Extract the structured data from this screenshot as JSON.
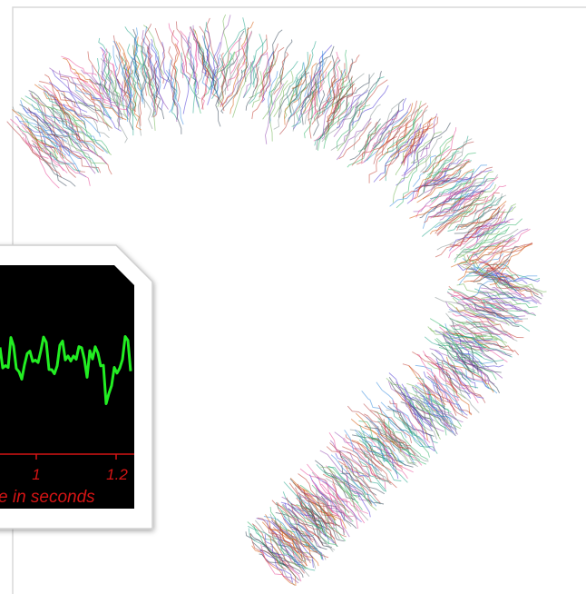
{
  "inset": {
    "tick_labels": [
      1,
      1.2
    ],
    "axis_label": "e in seconds"
  }
}
